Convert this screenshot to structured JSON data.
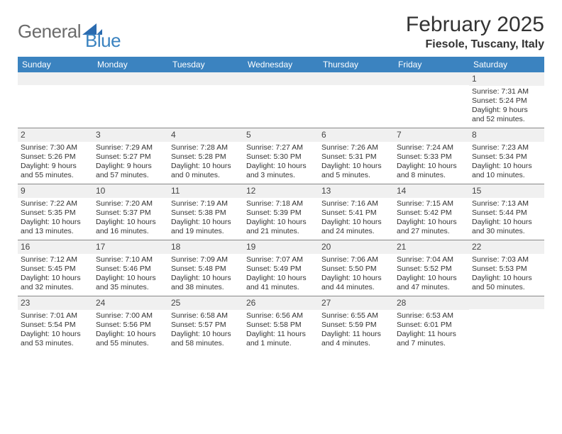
{
  "logo": {
    "text1": "General",
    "text2": "Blue"
  },
  "title": "February 2025",
  "location": "Fiesole, Tuscany, Italy",
  "header_bg": "#3b83c0",
  "dow": [
    "Sunday",
    "Monday",
    "Tuesday",
    "Wednesday",
    "Thursday",
    "Friday",
    "Saturday"
  ],
  "weeks": [
    [
      {
        "n": "",
        "sunrise": "",
        "sunset": "",
        "daylight": ""
      },
      {
        "n": "",
        "sunrise": "",
        "sunset": "",
        "daylight": ""
      },
      {
        "n": "",
        "sunrise": "",
        "sunset": "",
        "daylight": ""
      },
      {
        "n": "",
        "sunrise": "",
        "sunset": "",
        "daylight": ""
      },
      {
        "n": "",
        "sunrise": "",
        "sunset": "",
        "daylight": ""
      },
      {
        "n": "",
        "sunrise": "",
        "sunset": "",
        "daylight": ""
      },
      {
        "n": "1",
        "sunrise": "Sunrise: 7:31 AM",
        "sunset": "Sunset: 5:24 PM",
        "daylight": "Daylight: 9 hours and 52 minutes."
      }
    ],
    [
      {
        "n": "2",
        "sunrise": "Sunrise: 7:30 AM",
        "sunset": "Sunset: 5:26 PM",
        "daylight": "Daylight: 9 hours and 55 minutes."
      },
      {
        "n": "3",
        "sunrise": "Sunrise: 7:29 AM",
        "sunset": "Sunset: 5:27 PM",
        "daylight": "Daylight: 9 hours and 57 minutes."
      },
      {
        "n": "4",
        "sunrise": "Sunrise: 7:28 AM",
        "sunset": "Sunset: 5:28 PM",
        "daylight": "Daylight: 10 hours and 0 minutes."
      },
      {
        "n": "5",
        "sunrise": "Sunrise: 7:27 AM",
        "sunset": "Sunset: 5:30 PM",
        "daylight": "Daylight: 10 hours and 3 minutes."
      },
      {
        "n": "6",
        "sunrise": "Sunrise: 7:26 AM",
        "sunset": "Sunset: 5:31 PM",
        "daylight": "Daylight: 10 hours and 5 minutes."
      },
      {
        "n": "7",
        "sunrise": "Sunrise: 7:24 AM",
        "sunset": "Sunset: 5:33 PM",
        "daylight": "Daylight: 10 hours and 8 minutes."
      },
      {
        "n": "8",
        "sunrise": "Sunrise: 7:23 AM",
        "sunset": "Sunset: 5:34 PM",
        "daylight": "Daylight: 10 hours and 10 minutes."
      }
    ],
    [
      {
        "n": "9",
        "sunrise": "Sunrise: 7:22 AM",
        "sunset": "Sunset: 5:35 PM",
        "daylight": "Daylight: 10 hours and 13 minutes."
      },
      {
        "n": "10",
        "sunrise": "Sunrise: 7:20 AM",
        "sunset": "Sunset: 5:37 PM",
        "daylight": "Daylight: 10 hours and 16 minutes."
      },
      {
        "n": "11",
        "sunrise": "Sunrise: 7:19 AM",
        "sunset": "Sunset: 5:38 PM",
        "daylight": "Daylight: 10 hours and 19 minutes."
      },
      {
        "n": "12",
        "sunrise": "Sunrise: 7:18 AM",
        "sunset": "Sunset: 5:39 PM",
        "daylight": "Daylight: 10 hours and 21 minutes."
      },
      {
        "n": "13",
        "sunrise": "Sunrise: 7:16 AM",
        "sunset": "Sunset: 5:41 PM",
        "daylight": "Daylight: 10 hours and 24 minutes."
      },
      {
        "n": "14",
        "sunrise": "Sunrise: 7:15 AM",
        "sunset": "Sunset: 5:42 PM",
        "daylight": "Daylight: 10 hours and 27 minutes."
      },
      {
        "n": "15",
        "sunrise": "Sunrise: 7:13 AM",
        "sunset": "Sunset: 5:44 PM",
        "daylight": "Daylight: 10 hours and 30 minutes."
      }
    ],
    [
      {
        "n": "16",
        "sunrise": "Sunrise: 7:12 AM",
        "sunset": "Sunset: 5:45 PM",
        "daylight": "Daylight: 10 hours and 32 minutes."
      },
      {
        "n": "17",
        "sunrise": "Sunrise: 7:10 AM",
        "sunset": "Sunset: 5:46 PM",
        "daylight": "Daylight: 10 hours and 35 minutes."
      },
      {
        "n": "18",
        "sunrise": "Sunrise: 7:09 AM",
        "sunset": "Sunset: 5:48 PM",
        "daylight": "Daylight: 10 hours and 38 minutes."
      },
      {
        "n": "19",
        "sunrise": "Sunrise: 7:07 AM",
        "sunset": "Sunset: 5:49 PM",
        "daylight": "Daylight: 10 hours and 41 minutes."
      },
      {
        "n": "20",
        "sunrise": "Sunrise: 7:06 AM",
        "sunset": "Sunset: 5:50 PM",
        "daylight": "Daylight: 10 hours and 44 minutes."
      },
      {
        "n": "21",
        "sunrise": "Sunrise: 7:04 AM",
        "sunset": "Sunset: 5:52 PM",
        "daylight": "Daylight: 10 hours and 47 minutes."
      },
      {
        "n": "22",
        "sunrise": "Sunrise: 7:03 AM",
        "sunset": "Sunset: 5:53 PM",
        "daylight": "Daylight: 10 hours and 50 minutes."
      }
    ],
    [
      {
        "n": "23",
        "sunrise": "Sunrise: 7:01 AM",
        "sunset": "Sunset: 5:54 PM",
        "daylight": "Daylight: 10 hours and 53 minutes."
      },
      {
        "n": "24",
        "sunrise": "Sunrise: 7:00 AM",
        "sunset": "Sunset: 5:56 PM",
        "daylight": "Daylight: 10 hours and 55 minutes."
      },
      {
        "n": "25",
        "sunrise": "Sunrise: 6:58 AM",
        "sunset": "Sunset: 5:57 PM",
        "daylight": "Daylight: 10 hours and 58 minutes."
      },
      {
        "n": "26",
        "sunrise": "Sunrise: 6:56 AM",
        "sunset": "Sunset: 5:58 PM",
        "daylight": "Daylight: 11 hours and 1 minute."
      },
      {
        "n": "27",
        "sunrise": "Sunrise: 6:55 AM",
        "sunset": "Sunset: 5:59 PM",
        "daylight": "Daylight: 11 hours and 4 minutes."
      },
      {
        "n": "28",
        "sunrise": "Sunrise: 6:53 AM",
        "sunset": "Sunset: 6:01 PM",
        "daylight": "Daylight: 11 hours and 7 minutes."
      },
      {
        "n": "",
        "sunrise": "",
        "sunset": "",
        "daylight": ""
      }
    ]
  ]
}
